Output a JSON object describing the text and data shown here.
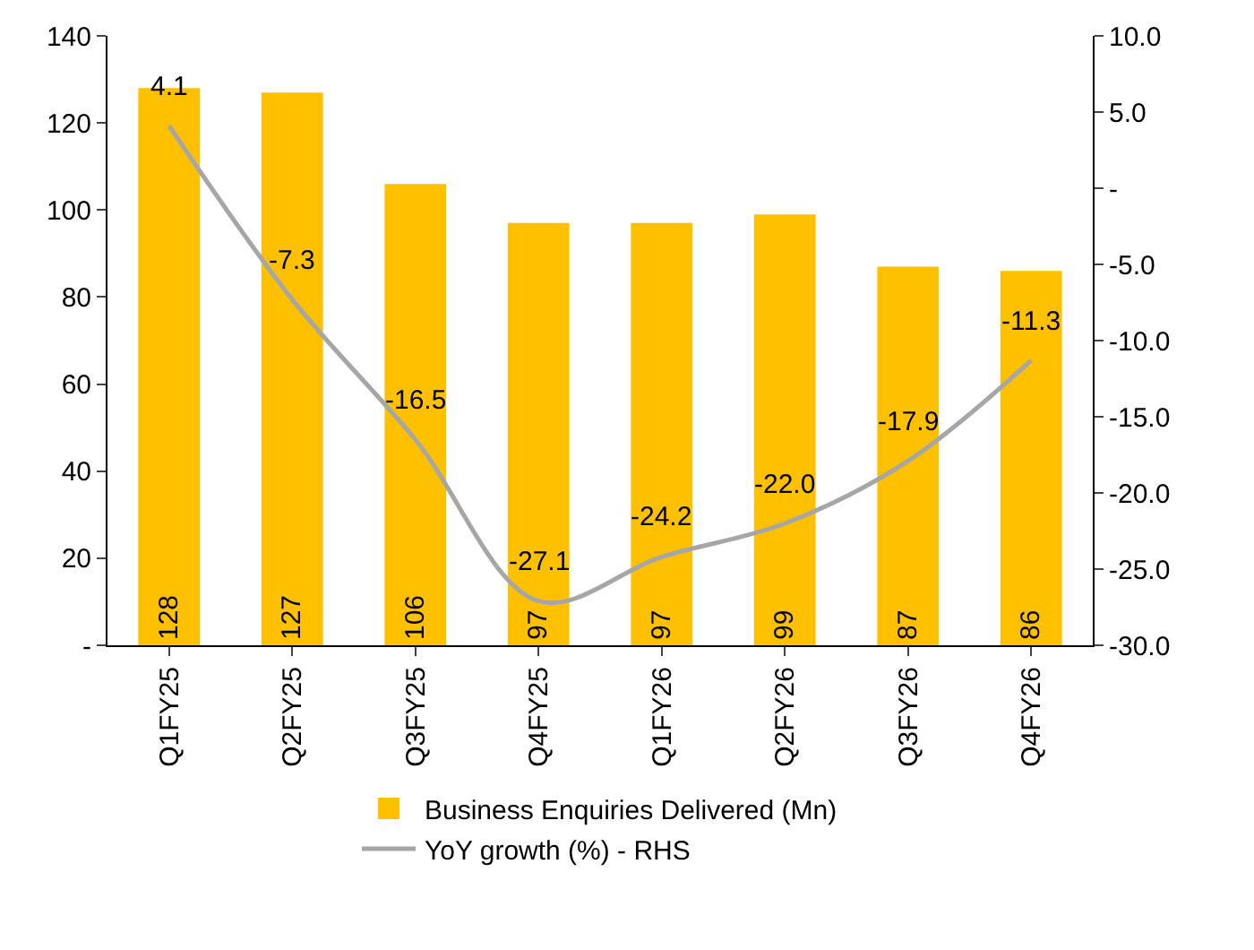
{
  "chart_data": {
    "type": "bar",
    "categories": [
      "Q1FY25",
      "Q2FY25",
      "Q3FY25",
      "Q4FY25",
      "Q1FY26",
      "Q2FY26",
      "Q3FY26",
      "Q4FY26"
    ],
    "series": [
      {
        "name": "Business Enquiries Delivered (Mn)",
        "type": "bar",
        "color": "#ffc000",
        "values": [
          128,
          127,
          106,
          97,
          97,
          99,
          87,
          86
        ]
      },
      {
        "name": "YoY growth (%) - RHS",
        "type": "line",
        "axis": "y2",
        "color": "#a6a6a6",
        "values": [
          4.1,
          -7.3,
          -16.5,
          -27.1,
          -24.2,
          -22.0,
          -17.9,
          -11.3
        ],
        "value_labels": [
          "4.1",
          "-7.3",
          "-16.5",
          "-27.1",
          "-24.2",
          "-22.0",
          "-17.9",
          "-11.3"
        ]
      }
    ],
    "ylim": [
      0,
      140
    ],
    "yticks": [
      {
        "value": 0,
        "label": "-"
      },
      20,
      40,
      60,
      80,
      100,
      120,
      140
    ],
    "y2lim": [
      -30,
      10
    ],
    "y2ticks": [
      {
        "value": -30,
        "label": "-30.0"
      },
      {
        "value": -25,
        "label": "-25.0"
      },
      {
        "value": -20,
        "label": "-20.0"
      },
      {
        "value": -15,
        "label": "-15.0"
      },
      {
        "value": -10,
        "label": "-10.0"
      },
      {
        "value": -5,
        "label": "-5.0"
      },
      {
        "value": 0,
        "label": "-"
      },
      {
        "value": 5,
        "label": "5.0"
      },
      {
        "value": 10,
        "label": "10.0"
      }
    ],
    "data_labels": true,
    "grid": false,
    "legend": "bottom",
    "marker": "none",
    "line_style": "solid"
  }
}
